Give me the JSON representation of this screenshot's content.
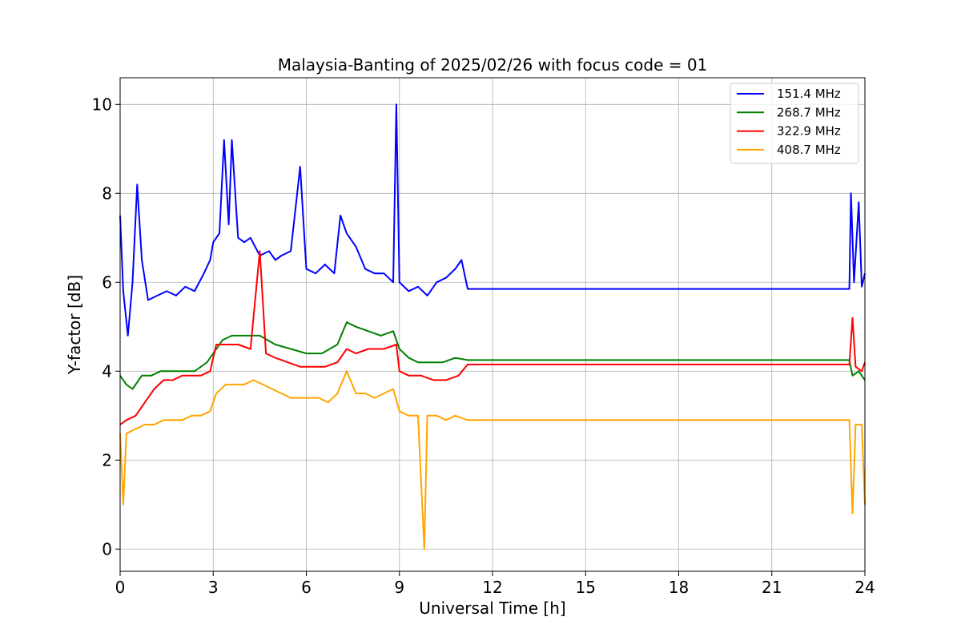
{
  "chart_data": {
    "type": "line",
    "title": "Malaysia-Banting of 2025/02/26 with focus code = 01",
    "xlabel": "Universal Time [h]",
    "ylabel": "Y-factor [dB]",
    "xlim": [
      0,
      24
    ],
    "ylim": [
      -0.5,
      10.6
    ],
    "xticks": [
      0,
      3,
      6,
      9,
      12,
      15,
      18,
      21,
      24
    ],
    "yticks": [
      0,
      2,
      4,
      6,
      8,
      10
    ],
    "grid": true,
    "legend_position": "top-right",
    "series": [
      {
        "name": "151.4 MHz",
        "color": "#0000ff",
        "points": [
          [
            0,
            7.5
          ],
          [
            0.1,
            5.8
          ],
          [
            0.25,
            4.8
          ],
          [
            0.4,
            6.0
          ],
          [
            0.55,
            8.2
          ],
          [
            0.7,
            6.5
          ],
          [
            0.9,
            5.6
          ],
          [
            1.2,
            5.7
          ],
          [
            1.5,
            5.8
          ],
          [
            1.8,
            5.7
          ],
          [
            2.1,
            5.9
          ],
          [
            2.4,
            5.8
          ],
          [
            2.7,
            6.2
          ],
          [
            2.9,
            6.5
          ],
          [
            3.0,
            6.9
          ],
          [
            3.2,
            7.1
          ],
          [
            3.35,
            9.2
          ],
          [
            3.5,
            7.3
          ],
          [
            3.6,
            9.2
          ],
          [
            3.8,
            7.0
          ],
          [
            4.0,
            6.9
          ],
          [
            4.2,
            7.0
          ],
          [
            4.5,
            6.6
          ],
          [
            4.8,
            6.7
          ],
          [
            5.0,
            6.5
          ],
          [
            5.2,
            6.6
          ],
          [
            5.5,
            6.7
          ],
          [
            5.8,
            8.6
          ],
          [
            6.0,
            6.3
          ],
          [
            6.3,
            6.2
          ],
          [
            6.6,
            6.4
          ],
          [
            6.9,
            6.2
          ],
          [
            7.1,
            7.5
          ],
          [
            7.3,
            7.1
          ],
          [
            7.6,
            6.8
          ],
          [
            7.9,
            6.3
          ],
          [
            8.2,
            6.2
          ],
          [
            8.5,
            6.2
          ],
          [
            8.8,
            6.0
          ],
          [
            8.9,
            10.0
          ],
          [
            9.0,
            6.0
          ],
          [
            9.3,
            5.8
          ],
          [
            9.6,
            5.9
          ],
          [
            9.9,
            5.7
          ],
          [
            10.2,
            6.0
          ],
          [
            10.5,
            6.1
          ],
          [
            10.8,
            6.3
          ],
          [
            11.0,
            6.5
          ],
          [
            11.2,
            5.85
          ],
          [
            23.5,
            5.85
          ],
          [
            23.55,
            8.0
          ],
          [
            23.65,
            6.0
          ],
          [
            23.8,
            7.8
          ],
          [
            23.9,
            5.9
          ],
          [
            24.0,
            6.2
          ]
        ]
      },
      {
        "name": "268.7 MHz",
        "color": "#008000",
        "points": [
          [
            0,
            3.9
          ],
          [
            0.2,
            3.7
          ],
          [
            0.4,
            3.6
          ],
          [
            0.7,
            3.9
          ],
          [
            1.0,
            3.9
          ],
          [
            1.3,
            4.0
          ],
          [
            1.6,
            4.0
          ],
          [
            2.0,
            4.0
          ],
          [
            2.4,
            4.0
          ],
          [
            2.8,
            4.2
          ],
          [
            3.0,
            4.4
          ],
          [
            3.3,
            4.7
          ],
          [
            3.6,
            4.8
          ],
          [
            4.0,
            4.8
          ],
          [
            4.5,
            4.8
          ],
          [
            5.0,
            4.6
          ],
          [
            5.5,
            4.5
          ],
          [
            6.0,
            4.4
          ],
          [
            6.5,
            4.4
          ],
          [
            7.0,
            4.6
          ],
          [
            7.3,
            5.1
          ],
          [
            7.6,
            5.0
          ],
          [
            8.0,
            4.9
          ],
          [
            8.4,
            4.8
          ],
          [
            8.8,
            4.9
          ],
          [
            9.0,
            4.5
          ],
          [
            9.3,
            4.3
          ],
          [
            9.6,
            4.2
          ],
          [
            10.0,
            4.2
          ],
          [
            10.4,
            4.2
          ],
          [
            10.8,
            4.3
          ],
          [
            11.2,
            4.25
          ],
          [
            23.5,
            4.25
          ],
          [
            23.6,
            3.9
          ],
          [
            23.8,
            4.0
          ],
          [
            24.0,
            3.8
          ]
        ]
      },
      {
        "name": "322.9 MHz",
        "color": "#ff0000",
        "points": [
          [
            0,
            2.8
          ],
          [
            0.2,
            2.9
          ],
          [
            0.5,
            3.0
          ],
          [
            0.8,
            3.3
          ],
          [
            1.1,
            3.6
          ],
          [
            1.4,
            3.8
          ],
          [
            1.7,
            3.8
          ],
          [
            2.0,
            3.9
          ],
          [
            2.3,
            3.9
          ],
          [
            2.6,
            3.9
          ],
          [
            2.9,
            4.0
          ],
          [
            3.1,
            4.6
          ],
          [
            3.5,
            4.6
          ],
          [
            3.8,
            4.6
          ],
          [
            4.2,
            4.5
          ],
          [
            4.5,
            6.7
          ],
          [
            4.7,
            4.4
          ],
          [
            5.0,
            4.3
          ],
          [
            5.4,
            4.2
          ],
          [
            5.8,
            4.1
          ],
          [
            6.2,
            4.1
          ],
          [
            6.6,
            4.1
          ],
          [
            7.0,
            4.2
          ],
          [
            7.3,
            4.5
          ],
          [
            7.6,
            4.4
          ],
          [
            8.0,
            4.5
          ],
          [
            8.5,
            4.5
          ],
          [
            8.9,
            4.6
          ],
          [
            9.0,
            4.0
          ],
          [
            9.3,
            3.9
          ],
          [
            9.7,
            3.9
          ],
          [
            10.1,
            3.8
          ],
          [
            10.5,
            3.8
          ],
          [
            10.9,
            3.9
          ],
          [
            11.2,
            4.15
          ],
          [
            23.5,
            4.15
          ],
          [
            23.6,
            5.2
          ],
          [
            23.7,
            4.1
          ],
          [
            23.9,
            4.0
          ],
          [
            24.0,
            4.2
          ]
        ]
      },
      {
        "name": "408.7 MHz",
        "color": "#ffa500",
        "points": [
          [
            0,
            2.6
          ],
          [
            0.1,
            1.0
          ],
          [
            0.2,
            2.6
          ],
          [
            0.5,
            2.7
          ],
          [
            0.8,
            2.8
          ],
          [
            1.1,
            2.8
          ],
          [
            1.4,
            2.9
          ],
          [
            1.7,
            2.9
          ],
          [
            2.0,
            2.9
          ],
          [
            2.3,
            3.0
          ],
          [
            2.6,
            3.0
          ],
          [
            2.9,
            3.1
          ],
          [
            3.1,
            3.5
          ],
          [
            3.4,
            3.7
          ],
          [
            3.7,
            3.7
          ],
          [
            4.0,
            3.7
          ],
          [
            4.3,
            3.8
          ],
          [
            4.6,
            3.7
          ],
          [
            4.9,
            3.6
          ],
          [
            5.2,
            3.5
          ],
          [
            5.5,
            3.4
          ],
          [
            5.8,
            3.4
          ],
          [
            6.1,
            3.4
          ],
          [
            6.4,
            3.4
          ],
          [
            6.7,
            3.3
          ],
          [
            7.0,
            3.5
          ],
          [
            7.3,
            4.0
          ],
          [
            7.6,
            3.5
          ],
          [
            7.9,
            3.5
          ],
          [
            8.2,
            3.4
          ],
          [
            8.5,
            3.5
          ],
          [
            8.8,
            3.6
          ],
          [
            9.0,
            3.1
          ],
          [
            9.3,
            3.0
          ],
          [
            9.6,
            3.0
          ],
          [
            9.8,
            0.0
          ],
          [
            9.9,
            3.0
          ],
          [
            10.2,
            3.0
          ],
          [
            10.5,
            2.9
          ],
          [
            10.8,
            3.0
          ],
          [
            11.2,
            2.9
          ],
          [
            23.5,
            2.9
          ],
          [
            23.6,
            0.8
          ],
          [
            23.7,
            2.8
          ],
          [
            23.9,
            2.8
          ],
          [
            24.0,
            1.0
          ]
        ]
      }
    ]
  }
}
